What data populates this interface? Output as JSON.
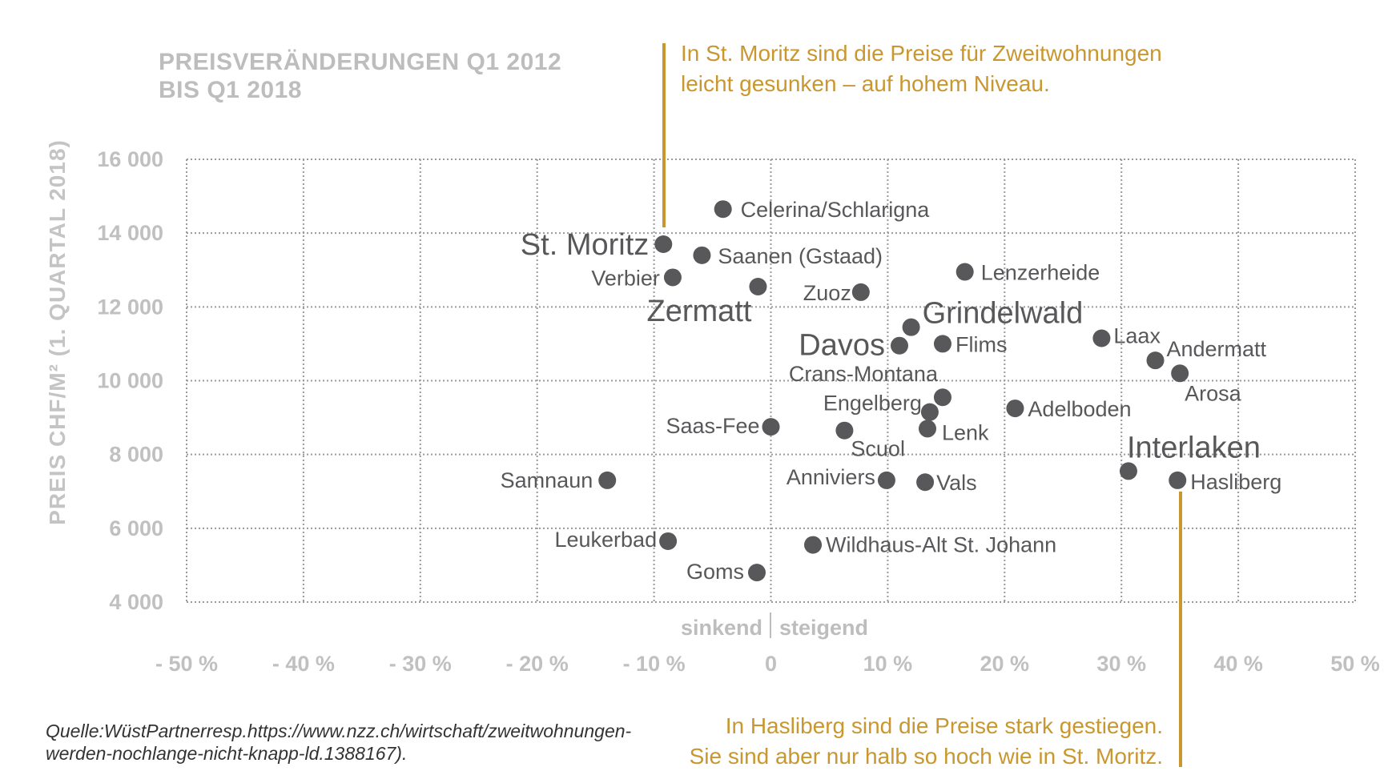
{
  "title_lines": [
    "PREISVERÄNDERUNGEN Q1 2012",
    "BIS Q1 2018"
  ],
  "source_lines": [
    "Quelle:WüstPartnerresp.https://www.nzz.ch/wirtschaft/zweitwohnungen-",
    "werden-nochlange-nicht-knapp-ld.1388167)."
  ],
  "annotations": {
    "top": [
      "In St. Moritz sind die Preise für Zweitwohnungen",
      "leicht gesunken – auf hohem Niveau."
    ],
    "bottom": [
      "In Hasliberg sind die Preise stark gestiegen.",
      "Sie sind aber nur halb so hoch wie in St. Moritz."
    ]
  },
  "colors": {
    "points": "#58585b",
    "annotation": "#c9972f",
    "axis_text": "#c0c0c0"
  },
  "chart_data": {
    "type": "scatter",
    "title": "PREISVERÄNDERUNGEN Q1 2012 BIS Q1 2018",
    "xlabel": "",
    "ylabel": "PREIS CHF/M² (1. QUARTAL 2018)",
    "direction_labels": {
      "left": "sinkend",
      "right": "steigend"
    },
    "xlim": [
      -50,
      50
    ],
    "ylim": [
      4000,
      16000
    ],
    "x_ticks": [
      -50,
      -40,
      -30,
      -20,
      -10,
      0,
      10,
      20,
      30,
      40,
      50
    ],
    "x_tick_labels": [
      "- 50 %",
      "- 40 %",
      "- 30 %",
      "- 20 %",
      "- 10 %",
      "0",
      "10 %",
      "20 %",
      "30 %",
      "40 %",
      "50 %"
    ],
    "y_ticks": [
      4000,
      6000,
      8000,
      10000,
      12000,
      14000,
      16000
    ],
    "y_tick_labels": [
      "4 000",
      "6 000",
      "8 000",
      "10 000",
      "12 000",
      "14 000",
      "16 000"
    ],
    "grid": true,
    "points": [
      {
        "label": "Celerina/Schlarigna",
        "x": -4.1,
        "y": 14650,
        "emphasis": false
      },
      {
        "label": "St. Moritz",
        "x": -9.2,
        "y": 13700,
        "emphasis": true
      },
      {
        "label": "Saanen (Gstaad)",
        "x": -5.9,
        "y": 13400,
        "emphasis": false
      },
      {
        "label": "Verbier",
        "x": -8.4,
        "y": 12800,
        "emphasis": false
      },
      {
        "label": "Zermatt",
        "x": -1.1,
        "y": 12550,
        "emphasis": true
      },
      {
        "label": "Zuoz",
        "x": 7.7,
        "y": 12400,
        "emphasis": false
      },
      {
        "label": "Lenzerheide",
        "x": 16.6,
        "y": 12950,
        "emphasis": false
      },
      {
        "label": "Grindelwald",
        "x": 12.0,
        "y": 11450,
        "emphasis": true
      },
      {
        "label": "Davos",
        "x": 11.0,
        "y": 10950,
        "emphasis": true
      },
      {
        "label": "Flims",
        "x": 14.7,
        "y": 11000,
        "emphasis": false
      },
      {
        "label": "Laax",
        "x": 28.3,
        "y": 11150,
        "emphasis": false
      },
      {
        "label": "Andermatt",
        "x": 32.9,
        "y": 10550,
        "emphasis": false
      },
      {
        "label": "Arosa",
        "x": 35.0,
        "y": 10200,
        "emphasis": false
      },
      {
        "label": "Crans-Montana",
        "x": 14.7,
        "y": 9550,
        "emphasis": false
      },
      {
        "label": "Engelberg",
        "x": 13.6,
        "y": 9150,
        "emphasis": false
      },
      {
        "label": "Adelboden",
        "x": 20.9,
        "y": 9250,
        "emphasis": false
      },
      {
        "label": "Lenk",
        "x": 13.4,
        "y": 8700,
        "emphasis": false
      },
      {
        "label": "Saas-Fee",
        "x": 0.0,
        "y": 8750,
        "emphasis": false
      },
      {
        "label": "Scuol",
        "x": 6.3,
        "y": 8650,
        "emphasis": false
      },
      {
        "label": "Interlaken",
        "x": 30.6,
        "y": 7550,
        "emphasis": true
      },
      {
        "label": "Hasliberg",
        "x": 34.8,
        "y": 7300,
        "emphasis": false
      },
      {
        "label": "Samnaun",
        "x": -14.0,
        "y": 7300,
        "emphasis": false
      },
      {
        "label": "Anniviers",
        "x": 9.9,
        "y": 7300,
        "emphasis": false
      },
      {
        "label": "Vals",
        "x": 13.2,
        "y": 7250,
        "emphasis": false
      },
      {
        "label": "Leukerbad",
        "x": -8.8,
        "y": 5650,
        "emphasis": false
      },
      {
        "label": "Wildhaus-Alt St. Johann",
        "x": 3.6,
        "y": 5550,
        "emphasis": false
      },
      {
        "label": "Goms",
        "x": -1.2,
        "y": 4800,
        "emphasis": false
      }
    ]
  }
}
